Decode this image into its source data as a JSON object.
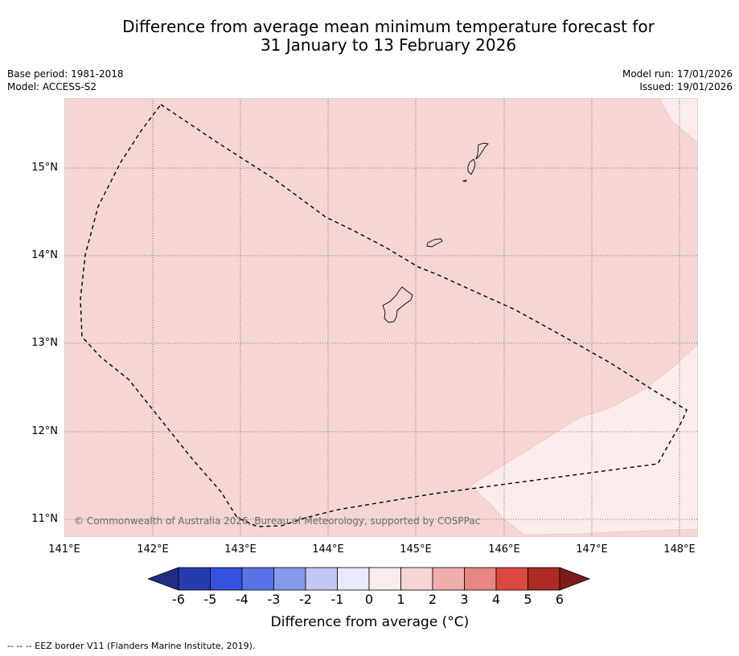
{
  "title": {
    "line1": "Difference from average mean minimum temperature forecast for",
    "line2": "31 January to 13 February 2026"
  },
  "meta": {
    "base_period": "Base period: 1981-2018",
    "model": "Model: ACCESS-S2",
    "model_run": "Model run: 17/01/2026",
    "issued": "Issued: 19/01/2026"
  },
  "map": {
    "lat_ticks": [
      "15°N",
      "14°N",
      "13°N",
      "12°N",
      "11°N"
    ],
    "lon_ticks": [
      "141°E",
      "142°E",
      "143°E",
      "144°E",
      "145°E",
      "146°E",
      "147°E",
      "148°E"
    ],
    "copyright": "© Commonwealth of Australia 2026, Bureau of Meteorology, supported by COSPPac",
    "colors": {
      "anomaly_1_to_2": "#f5d6d4",
      "anomaly_0_to_1": "#fbebea",
      "gridline": "#555555",
      "eez": "#000000"
    }
  },
  "colorbar": {
    "title": "Difference from average (°C)",
    "labels": [
      "-6",
      "-5",
      "-4",
      "-3",
      "-2",
      "-1",
      "0",
      "1",
      "2",
      "3",
      "4",
      "5",
      "6"
    ],
    "colors": [
      "#1f2d85",
      "#253bb0",
      "#3451e0",
      "#5a72e8",
      "#8799ec",
      "#c1c8f3",
      "#e6eafb",
      "#fbebea",
      "#f5d6d4",
      "#efaeab",
      "#e88684",
      "#db4a41",
      "#ad2a25",
      "#7c1b1b"
    ]
  },
  "footnote": "--  --  -- EEZ border V11 (Flanders Marine Institute, 2019)."
}
